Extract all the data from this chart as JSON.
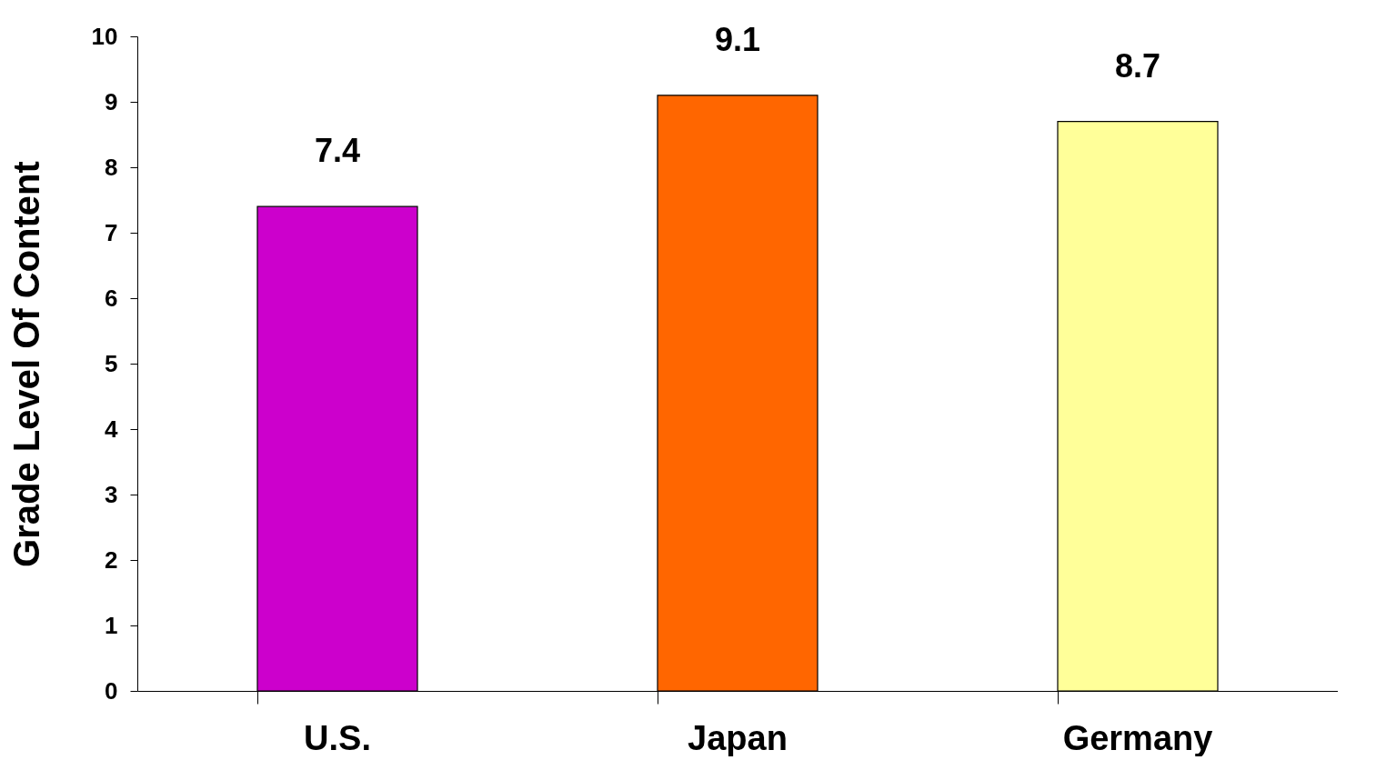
{
  "chart_data": {
    "type": "bar",
    "ylabel": "Grade Level Of Content",
    "categories": [
      "U.S.",
      "Japan",
      "Germany"
    ],
    "values": [
      7.4,
      9.1,
      8.7
    ],
    "colors": [
      "#cc00cc",
      "#ff6600",
      "#ffff99"
    ],
    "ylim": [
      0,
      10
    ],
    "yticks": [
      0,
      1,
      2,
      3,
      4,
      5,
      6,
      7,
      8,
      9,
      10
    ],
    "grid": false,
    "data_labels": true
  }
}
